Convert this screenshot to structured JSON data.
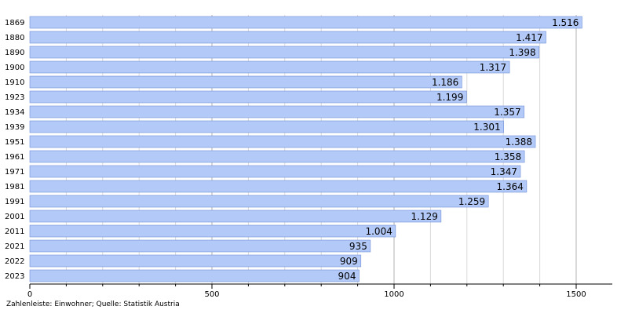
{
  "chart_data": {
    "type": "bar",
    "orientation": "horizontal",
    "categories": [
      "1869",
      "1880",
      "1890",
      "1900",
      "1910",
      "1923",
      "1934",
      "1939",
      "1951",
      "1961",
      "1971",
      "1981",
      "1991",
      "2001",
      "2011",
      "2021",
      "2022",
      "2023"
    ],
    "values": [
      1516,
      1417,
      1398,
      1317,
      1186,
      1199,
      1357,
      1301,
      1388,
      1358,
      1347,
      1364,
      1259,
      1129,
      1004,
      935,
      909,
      904
    ],
    "value_labels": [
      "1.516",
      "1.417",
      "1.398",
      "1.317",
      "1.186",
      "1.199",
      "1.357",
      "1.301",
      "1.388",
      "1.358",
      "1.347",
      "1.364",
      "1.259",
      "1.129",
      "1.004",
      "935",
      "909",
      "904"
    ],
    "xlim": [
      0,
      1600
    ],
    "x_ticks": [
      0,
      500,
      1000,
      1500
    ],
    "x_tick_labels": [
      "0",
      "500",
      "1000",
      "1500"
    ],
    "grid": true,
    "colors": {
      "bar": "#b3c9f7",
      "bar_edge": "#6f8fd8",
      "grid": "#d8d8d8",
      "axis": "#000000"
    }
  },
  "footnote": "Zahlenleiste: Einwohner; Quelle: Statistik Austria"
}
